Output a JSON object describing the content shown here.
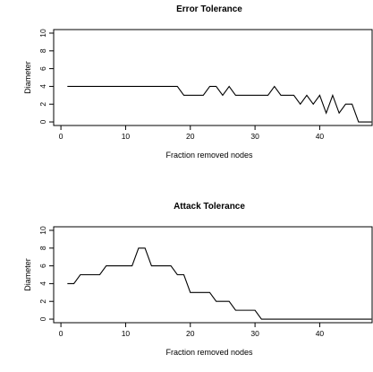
{
  "chart_data": [
    {
      "type": "line",
      "title": "Error Tolerance",
      "xlabel": "Fraction removed nodes",
      "ylabel": "Diameter",
      "xlim": [
        0,
        48
      ],
      "ylim": [
        0,
        10
      ],
      "xticks": [
        0,
        10,
        20,
        30,
        40
      ],
      "yticks": [
        0,
        2,
        4,
        6,
        8,
        10
      ],
      "grid": false,
      "series": [
        {
          "x": [
            1,
            2,
            3,
            4,
            5,
            6,
            7,
            8,
            9,
            10,
            11,
            12,
            13,
            14,
            15,
            16,
            17,
            18,
            19,
            20,
            21,
            22,
            23,
            24,
            25,
            26,
            27,
            28,
            29,
            30,
            31,
            32,
            33,
            34,
            35,
            36,
            37,
            38,
            39,
            40,
            41,
            42,
            43,
            44,
            45,
            46,
            47,
            48
          ],
          "values": [
            4,
            4,
            4,
            4,
            4,
            4,
            4,
            4,
            4,
            4,
            4,
            4,
            4,
            4,
            4,
            4,
            4,
            4,
            3,
            3,
            3,
            3,
            4,
            4,
            3,
            4,
            3,
            3,
            3,
            3,
            3,
            3,
            4,
            3,
            3,
            3,
            2,
            3,
            2,
            3,
            1,
            3,
            1,
            2,
            2,
            0,
            0,
            0
          ]
        }
      ]
    },
    {
      "type": "line",
      "title": "Attack Tolerance",
      "xlabel": "Fraction removed nodes",
      "ylabel": "Diameter",
      "xlim": [
        0,
        48
      ],
      "ylim": [
        0,
        10
      ],
      "xticks": [
        0,
        10,
        20,
        30,
        40
      ],
      "yticks": [
        0,
        2,
        4,
        6,
        8,
        10
      ],
      "grid": false,
      "series": [
        {
          "x": [
            1,
            2,
            3,
            4,
            5,
            6,
            7,
            8,
            9,
            10,
            11,
            12,
            13,
            14,
            15,
            16,
            17,
            18,
            19,
            20,
            21,
            22,
            23,
            24,
            25,
            26,
            27,
            28,
            29,
            30,
            31,
            32,
            33,
            34,
            35,
            36,
            37,
            38,
            39,
            40,
            41,
            42,
            43,
            44,
            45,
            46,
            47,
            48
          ],
          "values": [
            4,
            4,
            5,
            5,
            5,
            5,
            6,
            6,
            6,
            6,
            6,
            8,
            8,
            6,
            6,
            6,
            6,
            5,
            5,
            3,
            3,
            3,
            3,
            2,
            2,
            2,
            1,
            1,
            1,
            1,
            0,
            0,
            0,
            0,
            0,
            0,
            0,
            0,
            0,
            0,
            0,
            0,
            0,
            0,
            0,
            0,
            0,
            0
          ]
        }
      ]
    }
  ]
}
